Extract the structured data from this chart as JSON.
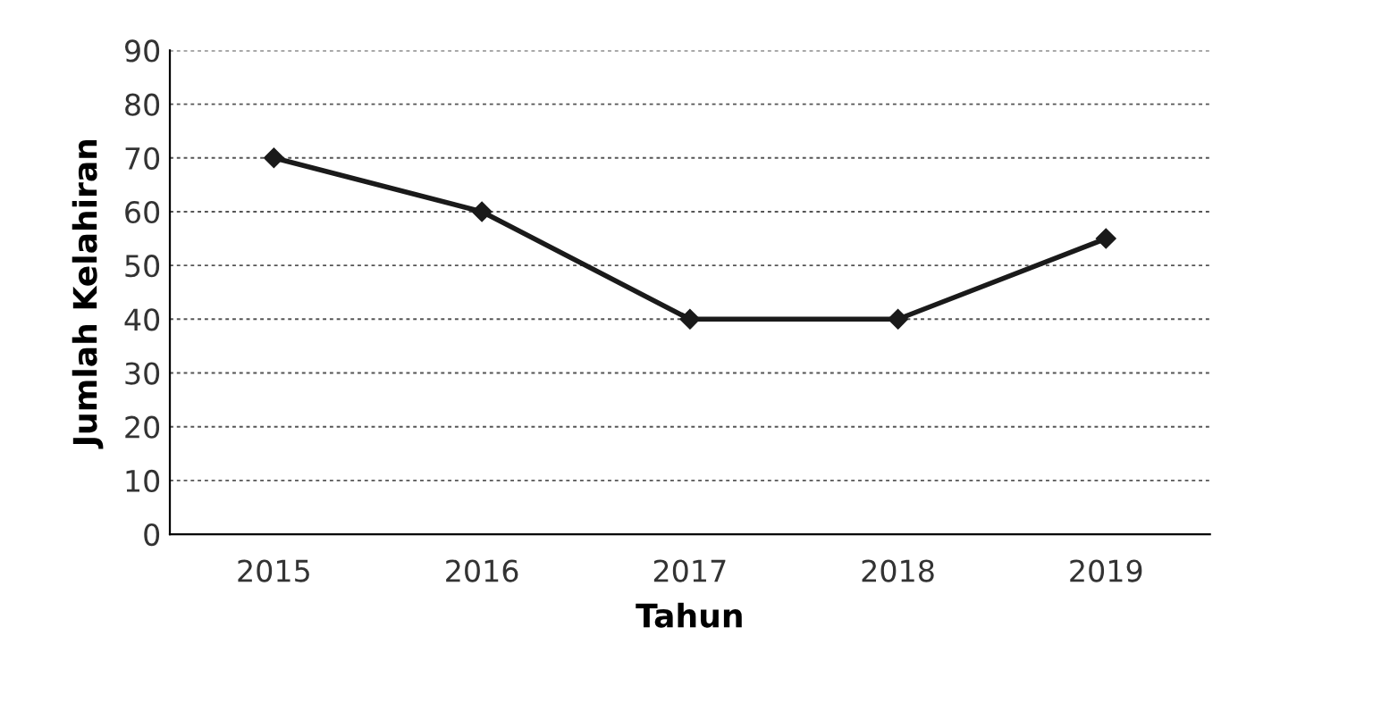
{
  "chart_data": {
    "type": "line",
    "xlabel": "Tahun",
    "ylabel": "Jumlah Kelahiran",
    "categories": [
      "2015",
      "2016",
      "2017",
      "2018",
      "2019"
    ],
    "series": [
      {
        "color": "#1a1a1a",
        "values": [
          70,
          60,
          40,
          40,
          55
        ]
      }
    ],
    "ylim": [
      0,
      90
    ],
    "yticks": [
      0,
      10,
      20,
      30,
      40,
      50,
      60,
      70,
      80,
      90
    ],
    "grid": "y",
    "marker": "diamond",
    "line_style": "solid",
    "legend": false
  }
}
